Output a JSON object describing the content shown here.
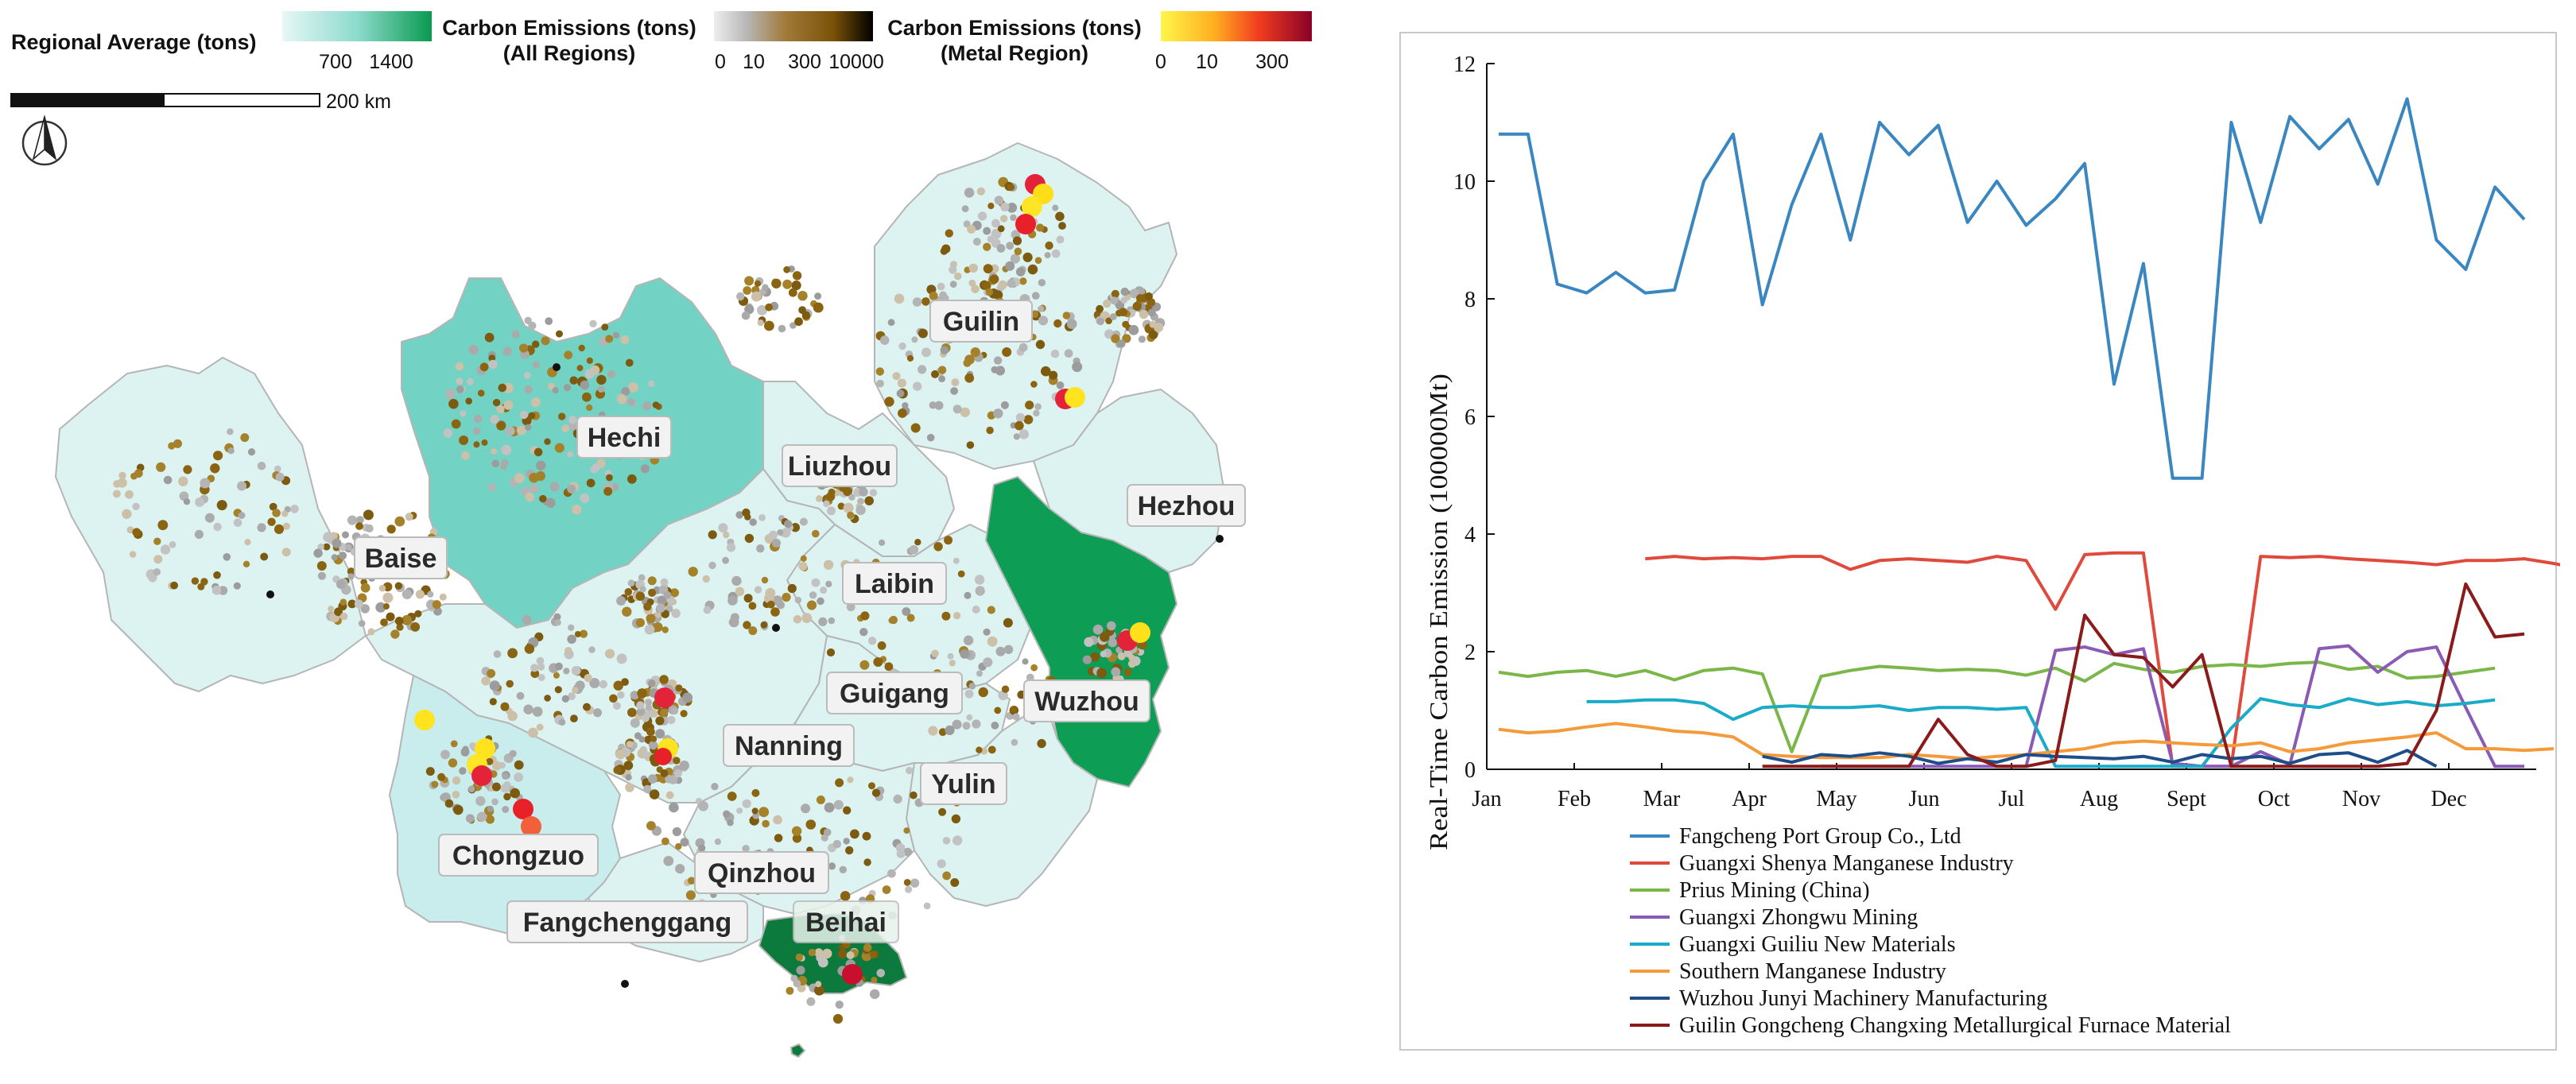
{
  "map": {
    "legend": {
      "regional_avg_title": "Regional Average (tons)",
      "regional_avg_ticks": [
        "700",
        "1400"
      ],
      "all_regions_title_1": "Carbon Emissions (tons)",
      "all_regions_title_2": "(All Regions)",
      "all_regions_ticks": [
        "0",
        "10",
        "300",
        "10000"
      ],
      "metal_title_1": "Carbon Emissions (tons)",
      "metal_title_2": "(Metal Region)",
      "metal_ticks": [
        "0",
        "10",
        "300"
      ],
      "scale_label": "200 km",
      "north_label": "N"
    },
    "cities": {
      "guilin": "Guilin",
      "hechi": "Hechi",
      "liuzhou": "Liuzhou",
      "hezhou": "Hezhou",
      "baise": "Baise",
      "laibin": "Laibin",
      "guigang": "Guigang",
      "wuzhou": "Wuzhou",
      "nanning": "Nanning",
      "yulin": "Yulin",
      "chongzuo": "Chongzuo",
      "qinzhou": "Qinzhou",
      "fangchenggang": "Fangchenggang",
      "beihai": "Beihai"
    },
    "colors": {
      "low": "#dcf3f2",
      "mid": "#6fd0c0",
      "high": "#0c9a52",
      "top": "#0b7a3c"
    }
  },
  "chart_data": {
    "type": "line",
    "ylabel": "Real-Time Carbon Emission (100000Mt)",
    "ylim": [
      0,
      12
    ],
    "yticks": [
      "0",
      "2",
      "4",
      "6",
      "8",
      "10",
      "12"
    ],
    "months": [
      "Jan",
      "Feb",
      "Mar",
      "Apr",
      "May",
      "Jun",
      "Jul",
      "Aug",
      "Sept",
      "Oct",
      "Nov",
      "Dec"
    ],
    "series": [
      {
        "name": "Fangcheng Port Group Co., Ltd",
        "color": "#3a86c0",
        "start": 0,
        "values": [
          10.8,
          10.8,
          8.25,
          8.1,
          8.45,
          8.1,
          8.15,
          10.0,
          10.8,
          7.9,
          9.6,
          10.8,
          9.0,
          11.0,
          10.45,
          10.95,
          9.3,
          10.0,
          9.25,
          9.7,
          10.3,
          6.55,
          8.6,
          4.95,
          4.95,
          11.0,
          9.3,
          11.1,
          10.55,
          11.05,
          9.95,
          11.4,
          9.0,
          8.5,
          9.9,
          9.35
        ]
      },
      {
        "name": "Guangxi Shenya Manganese Industry",
        "color": "#e04a3c",
        "start": 5,
        "values": [
          3.58,
          3.62,
          3.58,
          3.6,
          3.58,
          3.62,
          3.62,
          3.4,
          3.55,
          3.58,
          3.55,
          3.52,
          3.62,
          3.55,
          2.72,
          3.65,
          3.68,
          3.68,
          0.05,
          0.05,
          0.05,
          3.62,
          3.6,
          3.62,
          3.58,
          3.55,
          3.52,
          3.48,
          3.55,
          3.55,
          3.58,
          3.5,
          3.4
        ]
      },
      {
        "name": "Prius Mining (China)",
        "color": "#7ab648",
        "start": 0,
        "values": [
          1.65,
          1.58,
          1.65,
          1.68,
          1.58,
          1.68,
          1.52,
          1.68,
          1.72,
          1.62,
          0.3,
          1.58,
          1.68,
          1.75,
          1.72,
          1.68,
          1.7,
          1.68,
          1.6,
          1.72,
          1.5,
          1.8,
          1.7,
          1.65,
          1.75,
          1.78,
          1.75,
          1.8,
          1.82,
          1.7,
          1.75,
          1.55,
          1.58,
          1.65,
          1.72
        ]
      },
      {
        "name": "Guangxi Zhongwu Mining",
        "color": "#8a5ab5",
        "start": 11,
        "values": [
          0.05,
          0.05,
          0.05,
          0.05,
          0.05,
          0.05,
          0.05,
          0.05,
          2.02,
          2.08,
          1.95,
          2.05,
          0.1,
          0.05,
          0.05,
          0.3,
          0.08,
          2.05,
          2.1,
          1.65,
          2.0,
          2.08,
          1.05,
          0.05,
          0.05
        ]
      },
      {
        "name": "Guangxi Guiliu New Materials",
        "color": "#1aabc8",
        "start": 3,
        "values": [
          1.15,
          1.15,
          1.18,
          1.18,
          1.12,
          0.85,
          1.05,
          1.08,
          1.05,
          1.05,
          1.08,
          1.0,
          1.05,
          1.05,
          1.02,
          1.05,
          0.05,
          0.05,
          0.05,
          0.05,
          0.05,
          0.05,
          0.7,
          1.2,
          1.1,
          1.05,
          1.2,
          1.1,
          1.15,
          1.08,
          1.12,
          1.18
        ]
      },
      {
        "name": "Southern Manganese Industry",
        "color": "#f59a3a",
        "start": 0,
        "values": [
          0.68,
          0.62,
          0.65,
          0.72,
          0.78,
          0.72,
          0.65,
          0.62,
          0.55,
          0.25,
          0.22,
          0.2,
          0.2,
          0.2,
          0.25,
          0.22,
          0.18,
          0.22,
          0.25,
          0.3,
          0.35,
          0.45,
          0.48,
          0.45,
          0.42,
          0.4,
          0.45,
          0.3,
          0.35,
          0.45,
          0.5,
          0.55,
          0.62,
          0.35,
          0.35,
          0.32,
          0.35
        ]
      },
      {
        "name": "Wuzhou Junyi Machinery Manufacturing",
        "color": "#1d4e89",
        "start": 9,
        "values": [
          0.22,
          0.12,
          0.25,
          0.22,
          0.28,
          0.22,
          0.1,
          0.18,
          0.12,
          0.25,
          0.22,
          0.2,
          0.18,
          0.22,
          0.12,
          0.25,
          0.18,
          0.22,
          0.1,
          0.25,
          0.28,
          0.12,
          0.32,
          0.05
        ]
      },
      {
        "name": "Guilin Gongcheng Changxing Metallurgical Furnace Material",
        "color": "#8b1a1a",
        "start": 9,
        "values": [
          0.05,
          0.05,
          0.05,
          0.05,
          0.05,
          0.05,
          0.85,
          0.25,
          0.05,
          0.05,
          0.15,
          2.62,
          1.95,
          1.9,
          1.4,
          1.95,
          0.05,
          0.05,
          0.05,
          0.05,
          0.05,
          0.05,
          0.1,
          1.0,
          3.15,
          2.25,
          2.3
        ]
      }
    ]
  }
}
